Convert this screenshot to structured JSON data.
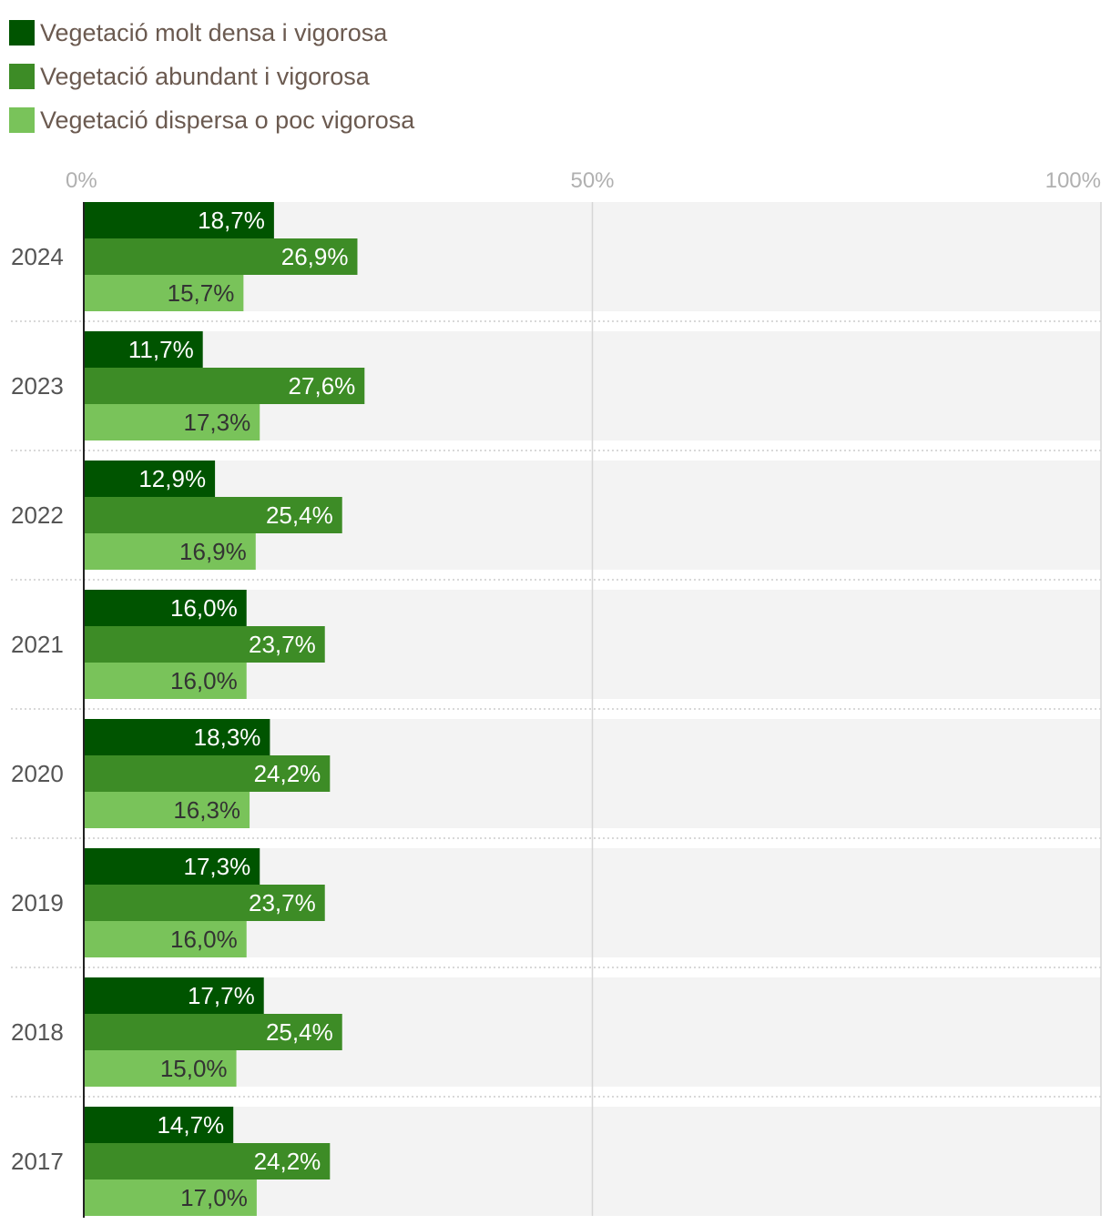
{
  "chart_data": {
    "type": "bar",
    "orientation": "horizontal",
    "categories": [
      "2024",
      "2023",
      "2022",
      "2021",
      "2020",
      "2019",
      "2018",
      "2017"
    ],
    "series": [
      {
        "name": "Vegetació molt densa i vigorosa",
        "color": "#005400",
        "label_color": "#ffffff",
        "values": [
          18.7,
          11.7,
          12.9,
          16.0,
          18.3,
          17.3,
          17.7,
          14.7
        ],
        "labels": [
          "18,7%",
          "11,7%",
          "12,9%",
          "16,0%",
          "18,3%",
          "17,3%",
          "17,7%",
          "14,7%"
        ]
      },
      {
        "name": "Vegetació abundant i vigorosa",
        "color": "#3d8c26",
        "label_color": "#ffffff",
        "values": [
          26.9,
          27.6,
          25.4,
          23.7,
          24.2,
          23.7,
          25.4,
          24.2
        ],
        "labels": [
          "26,9%",
          "27,6%",
          "25,4%",
          "23,7%",
          "24,2%",
          "23,7%",
          "25,4%",
          "24,2%"
        ]
      },
      {
        "name": "Vegetació dispersa o poc vigorosa",
        "color": "#79c35a",
        "label_color": "#333333",
        "values": [
          15.7,
          17.3,
          16.9,
          16.0,
          16.3,
          16.0,
          15.0,
          17.0
        ],
        "labels": [
          "15,7%",
          "17,3%",
          "16,9%",
          "16,0%",
          "16,3%",
          "16,0%",
          "15,0%",
          "17,0%"
        ]
      }
    ],
    "xlim": [
      0,
      100
    ],
    "ticks": [
      {
        "value": 0,
        "label": "0%"
      },
      {
        "value": 50,
        "label": "50%"
      },
      {
        "value": 100,
        "label": "100%"
      }
    ],
    "legend_position": "top-left",
    "grid": true
  }
}
